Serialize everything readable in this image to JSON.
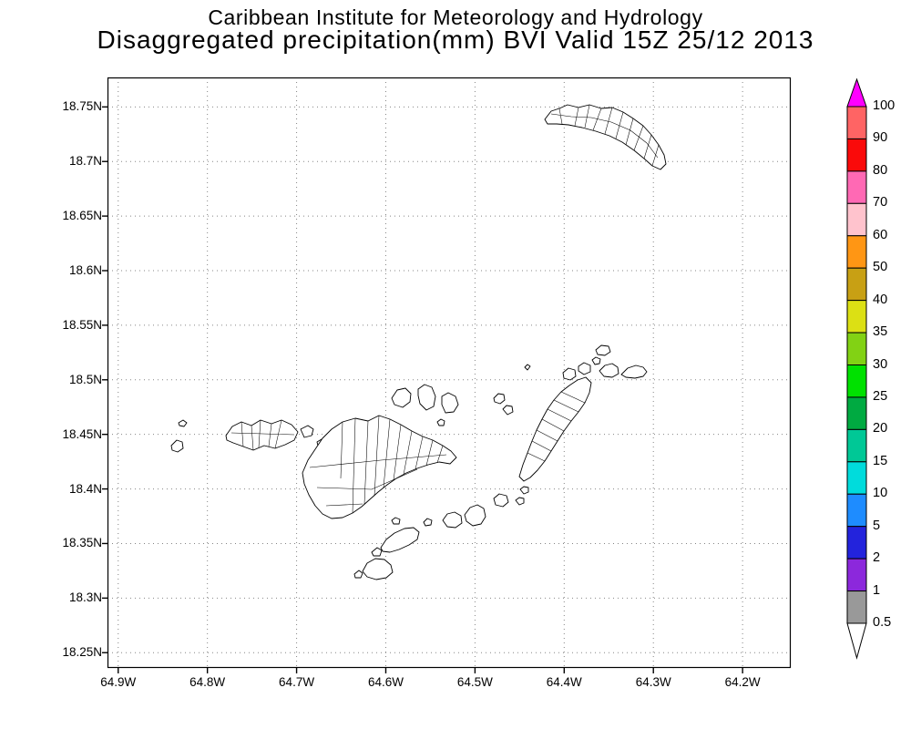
{
  "title": {
    "line1": "Caribbean Institute for Meteorology and Hydrology",
    "line2": "Disaggregated precipitation(mm) BVI Valid 15Z 25/12 2013"
  },
  "map": {
    "x_axis": {
      "tick_labels": [
        "64.9W",
        "64.8W",
        "64.7W",
        "64.6W",
        "64.5W",
        "64.4W",
        "64.3W",
        "64.2W"
      ]
    },
    "y_axis": {
      "tick_labels": [
        "18.75N",
        "18.7N",
        "18.65N",
        "18.6N",
        "18.55N",
        "18.5N",
        "18.45N",
        "18.4N",
        "18.35N",
        "18.3N",
        "18.25N"
      ]
    }
  },
  "colorbar": {
    "labels": [
      "100",
      "90",
      "80",
      "70",
      "60",
      "50",
      "40",
      "35",
      "30",
      "25",
      "20",
      "15",
      "10",
      "5",
      "2",
      "1",
      "0.5"
    ],
    "above_max_color": "#ff00ff",
    "below_min_color": "#ffffff",
    "segments": [
      {
        "range": "90-100",
        "color": "#ff6464"
      },
      {
        "range": "80-90",
        "color": "#fa0a0a"
      },
      {
        "range": "70-80",
        "color": "#ff69b4"
      },
      {
        "range": "60-70",
        "color": "#ffc3cd"
      },
      {
        "range": "50-60",
        "color": "#ff9614"
      },
      {
        "range": "40-50",
        "color": "#c8a014"
      },
      {
        "range": "35-40",
        "color": "#dce014"
      },
      {
        "range": "30-35",
        "color": "#82d214"
      },
      {
        "range": "25-30",
        "color": "#00e100"
      },
      {
        "range": "20-25",
        "color": "#00aa41"
      },
      {
        "range": "15-20",
        "color": "#00c896"
      },
      {
        "range": "10-15",
        "color": "#00dcdc"
      },
      {
        "range": "5-10",
        "color": "#1e8cff"
      },
      {
        "range": "2-5",
        "color": "#2323dc"
      },
      {
        "range": "1-2",
        "color": "#8c28dc"
      },
      {
        "range": "0.5-1",
        "color": "#999999"
      }
    ]
  }
}
